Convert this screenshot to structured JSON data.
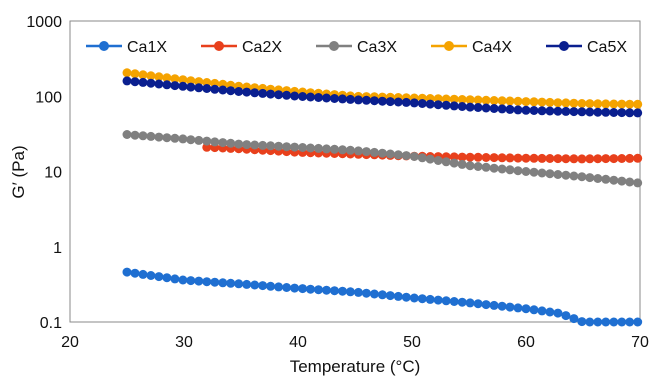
{
  "chart_data": {
    "type": "scatter",
    "xlabel": "Temperature (°C)",
    "ylabel": "G′ (Pa)",
    "xlim": [
      20,
      70
    ],
    "ylim": [
      0.1,
      1000
    ],
    "y_scale": "log",
    "x_ticks": [
      "20",
      "30",
      "40",
      "50",
      "60",
      "70"
    ],
    "y_ticks": [
      "0.1",
      "1",
      "10",
      "100",
      "1000"
    ],
    "grid": false,
    "legend_position": "top",
    "series": [
      {
        "name": "Ca1X",
        "color": "#1f6fd1",
        "x": [
          25,
          30,
          35,
          40,
          45,
          50,
          55,
          60,
          63,
          65,
          67,
          70
        ],
        "y": [
          0.46,
          0.36,
          0.32,
          0.28,
          0.25,
          0.21,
          0.18,
          0.15,
          0.13,
          0.1,
          0.1,
          0.1
        ]
      },
      {
        "name": "Ca2X",
        "color": "#e8401c",
        "x": [
          32,
          35,
          40,
          45,
          50,
          55,
          60,
          65,
          70
        ],
        "y": [
          21,
          20,
          18,
          17,
          16,
          15.5,
          15,
          14.7,
          15
        ]
      },
      {
        "name": "Ca3X",
        "color": "#808080",
        "x": [
          25,
          30,
          35,
          40,
          45,
          50,
          55,
          60,
          65,
          70
        ],
        "y": [
          31,
          27,
          23,
          21,
          19,
          16,
          12,
          10,
          8.5,
          7
        ]
      },
      {
        "name": "Ca4X",
        "color": "#f5a300",
        "x": [
          25,
          30,
          35,
          40,
          45,
          50,
          55,
          60,
          65,
          70
        ],
        "y": [
          205,
          165,
          135,
          115,
          100,
          95,
          90,
          85,
          80,
          78
        ]
      },
      {
        "name": "Ca5X",
        "color": "#0a1f8f",
        "x": [
          25,
          30,
          35,
          40,
          45,
          50,
          55,
          60,
          65,
          70
        ],
        "y": [
          160,
          135,
          115,
          100,
          90,
          82,
          72,
          65,
          62,
          60
        ]
      }
    ]
  }
}
